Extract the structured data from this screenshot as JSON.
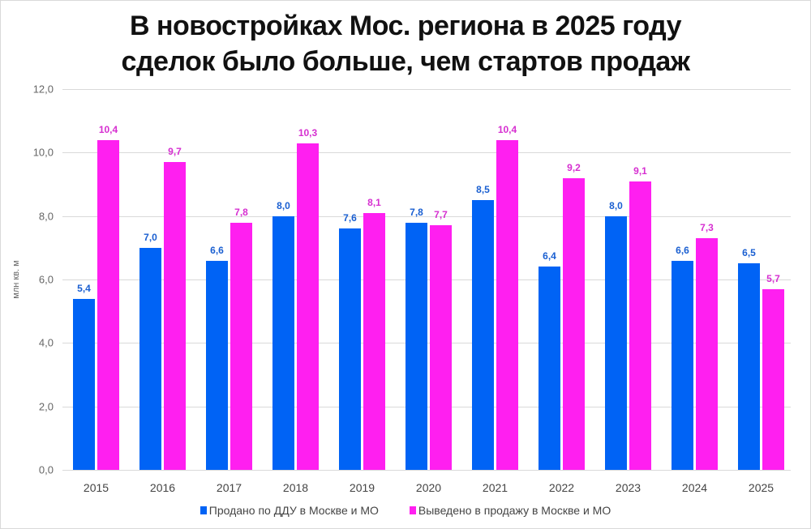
{
  "chart_data": {
    "type": "bar",
    "title": "В новостройках Мос. региона в 2025 году сделок было больше, чем стартов продаж",
    "title_lines": [
      "В новостройках Мос. региона в 2025 году",
      "сделок было больше, чем стартов продаж"
    ],
    "xlabel": "",
    "ylabel": "млн кв. м",
    "ylim": [
      0,
      12
    ],
    "yticks": [
      "0,0",
      "2,0",
      "4,0",
      "6,0",
      "8,0",
      "10,0",
      "12,0"
    ],
    "grid": true,
    "legend_position": "bottom",
    "categories": [
      "2015",
      "2016",
      "2017",
      "2018",
      "2019",
      "2020",
      "2021",
      "2022",
      "2023",
      "2024",
      "2025"
    ],
    "series": [
      {
        "name": "Продано по ДДУ в Москве и МО",
        "color": "#0063f5",
        "label_color": "#1a5fd1",
        "values": [
          5.4,
          7.0,
          6.6,
          8.0,
          7.6,
          7.8,
          8.5,
          6.4,
          8.0,
          6.6,
          6.5
        ],
        "labels": [
          "5,4",
          "7,0",
          "6,6",
          "8,0",
          "7,6",
          "7,8",
          "8,5",
          "6,4",
          "8,0",
          "6,6",
          "6,5"
        ]
      },
      {
        "name": "Выведено в продажу в Москве и МО",
        "color": "#ff1ff0",
        "label_color": "#d62fd0",
        "values": [
          10.4,
          9.7,
          7.8,
          10.3,
          8.1,
          7.7,
          10.4,
          9.2,
          9.1,
          7.3,
          5.7
        ],
        "labels": [
          "10,4",
          "9,7",
          "7,8",
          "10,3",
          "8,1",
          "7,7",
          "10,4",
          "9,2",
          "9,1",
          "7,3",
          "5,7"
        ]
      }
    ]
  }
}
